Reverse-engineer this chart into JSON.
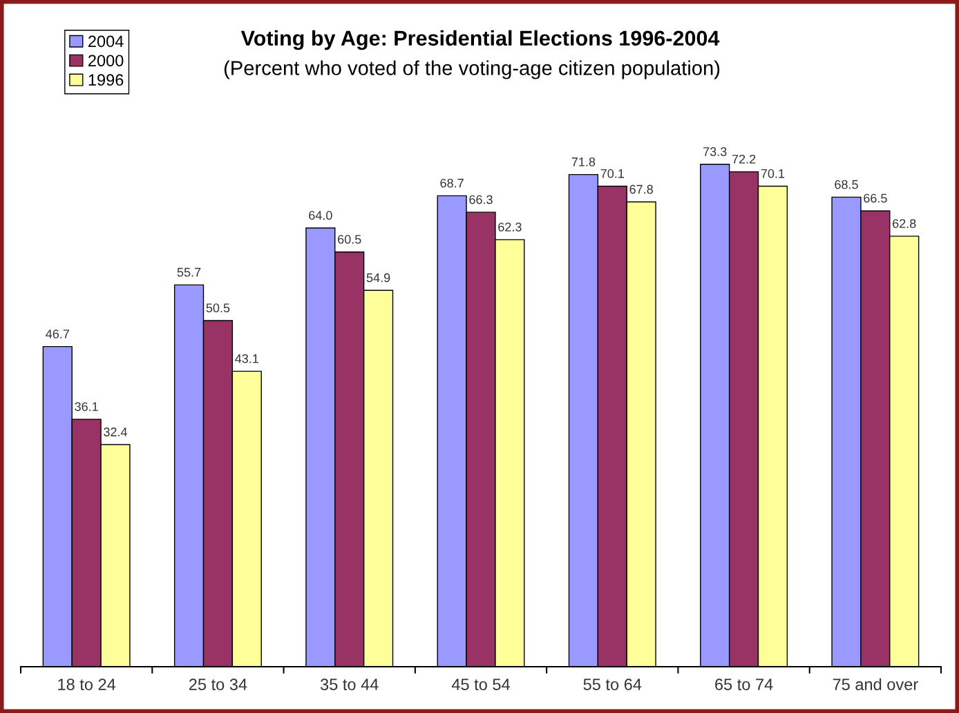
{
  "chart_data": {
    "type": "bar",
    "title": "Voting by Age: Presidential Elections 1996-2004",
    "subtitle": "(Percent who voted of the voting-age citizen population)",
    "categories": [
      "18 to 24",
      "25 to 34",
      "35 to 44",
      "45 to 54",
      "55 to 64",
      "65 to 74",
      "75 and over"
    ],
    "series": [
      {
        "name": "2004",
        "color": "#9999ff",
        "values": [
          46.7,
          55.7,
          64.0,
          68.7,
          71.8,
          73.3,
          68.5
        ],
        "value_labels": [
          "46.7",
          "55.7",
          "64.0",
          "68.7",
          "71.8",
          "73.3",
          "68.5"
        ]
      },
      {
        "name": "2000",
        "color": "#993366",
        "values": [
          36.1,
          50.5,
          60.5,
          66.3,
          70.1,
          72.2,
          66.5
        ],
        "value_labels": [
          "36.1",
          "50.5",
          "60.5",
          "66.3",
          "70.1",
          "72.2",
          "66.5"
        ]
      },
      {
        "name": "1996",
        "color": "#ffff99",
        "values": [
          32.4,
          43.1,
          54.9,
          62.3,
          67.8,
          70.1,
          62.8
        ],
        "value_labels": [
          "32.4",
          "43.1",
          "54.9",
          "62.3",
          "67.8",
          "70.1",
          "62.8"
        ]
      }
    ],
    "legend": "top left",
    "grid": false
  }
}
